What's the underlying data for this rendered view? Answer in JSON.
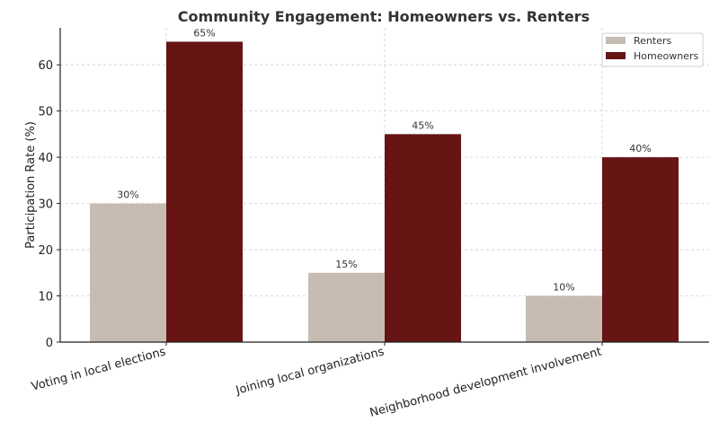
{
  "chart_data": {
    "type": "bar",
    "title": "Community Engagement: Homeowners vs. Renters",
    "xlabel": "",
    "ylabel": "Participation Rate (%)",
    "categories": [
      "Voting in local elections",
      "Joining local organizations",
      "Neighborhood development involvement"
    ],
    "series": [
      {
        "name": "Renters",
        "values": [
          30,
          15,
          10
        ],
        "labels": [
          "30%",
          "15%",
          "10%"
        ],
        "color": "#c6bcb1"
      },
      {
        "name": "Homeowners",
        "values": [
          65,
          45,
          40
        ],
        "labels": [
          "65%",
          "45%",
          "40%"
        ],
        "color": "#661414"
      }
    ],
    "ylim": [
      0,
      68
    ],
    "yticks": [
      0,
      10,
      20,
      30,
      40,
      50,
      60
    ],
    "grid": true,
    "legend": "top-right"
  }
}
